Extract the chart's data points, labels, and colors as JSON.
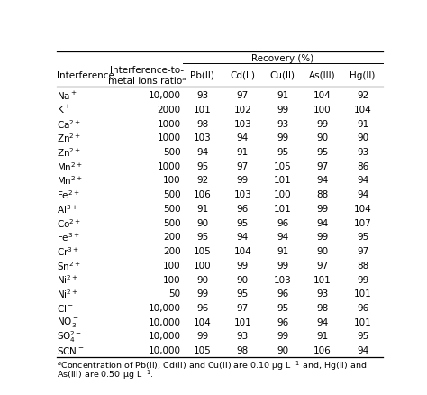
{
  "recovery_label": "Recovery (%)",
  "col_headers_left": [
    "Interference",
    "Interference-to-\nmetal ions ratioᵃ"
  ],
  "col_headers_right": [
    "Pb(II)",
    "Cd(II)",
    "Cu(II)",
    "As(III)",
    "Hg(II)"
  ],
  "rows": [
    [
      "Na$^+$",
      "10,000",
      "93",
      "97",
      "91",
      "104",
      "92"
    ],
    [
      "K$^+$",
      "2000",
      "101",
      "102",
      "99",
      "100",
      "104"
    ],
    [
      "Ca$^{2+}$",
      "1000",
      "98",
      "103",
      "93",
      "99",
      "91"
    ],
    [
      "Zn$^{2+}$",
      "1000",
      "103",
      "94",
      "99",
      "90",
      "90"
    ],
    [
      "Zn$^{2+}$",
      "500",
      "94",
      "91",
      "95",
      "95",
      "93"
    ],
    [
      "Mn$^{2+}$",
      "1000",
      "95",
      "97",
      "105",
      "97",
      "86"
    ],
    [
      "Mn$^{2+}$",
      "100",
      "92",
      "99",
      "101",
      "94",
      "94"
    ],
    [
      "Fe$^{2+}$",
      "500",
      "106",
      "103",
      "100",
      "88",
      "94"
    ],
    [
      "Al$^{3+}$",
      "500",
      "91",
      "96",
      "101",
      "99",
      "104"
    ],
    [
      "Co$^{2+}$",
      "500",
      "90",
      "95",
      "96",
      "94",
      "107"
    ],
    [
      "Fe$^{3+}$",
      "200",
      "95",
      "94",
      "94",
      "99",
      "95"
    ],
    [
      "Cr$^{3+}$",
      "200",
      "105",
      "104",
      "91",
      "90",
      "97"
    ],
    [
      "Sn$^{2+}$",
      "100",
      "100",
      "99",
      "99",
      "97",
      "88"
    ],
    [
      "Ni$^{2+}$",
      "100",
      "90",
      "90",
      "103",
      "101",
      "99"
    ],
    [
      "Ni$^{2+}$",
      "50",
      "99",
      "95",
      "96",
      "93",
      "101"
    ],
    [
      "Cl$^-$",
      "10,000",
      "96",
      "97",
      "95",
      "98",
      "96"
    ],
    [
      "NO$_3^-$",
      "10,000",
      "104",
      "101",
      "96",
      "94",
      "101"
    ],
    [
      "SO$_4^{2-}$",
      "10,000",
      "99",
      "93",
      "99",
      "91",
      "95"
    ],
    [
      "SCN$^-$",
      "10,000",
      "105",
      "98",
      "90",
      "106",
      "94"
    ]
  ],
  "footnote1": "$^a$Concentration of Pb(II), Cd(II) and Cu(II) are 0.10 μg L$^{-1}$ and, Hg(II) and",
  "footnote2": "As(III) are 0.50 μg L$^{-1}$.",
  "bg_color": "#ffffff",
  "text_color": "#000000",
  "line_color": "#000000",
  "header_fs": 7.5,
  "data_fs": 7.5,
  "footnote_fs": 6.8
}
